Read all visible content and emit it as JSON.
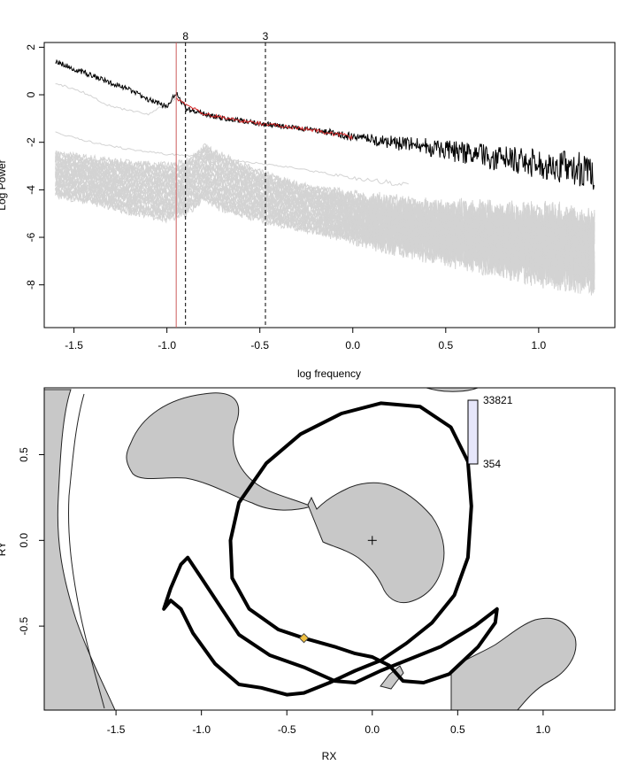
{
  "chart_data": [
    {
      "type": "line",
      "xlabel": "log frequency",
      "ylabel": "Log Power",
      "xlim": [
        -1.66,
        1.41
      ],
      "ylim": [
        -9.8,
        2.2
      ],
      "x_ticks": [
        -1.5,
        -1.0,
        -0.5,
        0.0,
        0.5,
        1.0
      ],
      "x_tick_labels": [
        "-1.5",
        "-1.0",
        "-0.5",
        "0.0",
        "0.5",
        "1.0"
      ],
      "y_ticks": [
        2,
        0,
        -2,
        -4,
        -6,
        -8
      ],
      "y_tick_labels": [
        "2",
        "0",
        "-2",
        "-4",
        "-6",
        "-8"
      ],
      "vertical_lines": [
        {
          "x": -0.95,
          "color": "#cd5c5c",
          "style": "solid",
          "label": ""
        },
        {
          "x": -0.9,
          "color": "#000000",
          "style": "dashed",
          "label": "8"
        },
        {
          "x": -0.47,
          "color": "#000000",
          "style": "dashed",
          "label": "3"
        }
      ],
      "series": [
        {
          "color": "#000000",
          "x": [
            -1.6,
            -1.5,
            -1.4,
            -1.3,
            -1.2,
            -1.1,
            -1.0,
            -0.95,
            -0.9,
            -0.8,
            -0.7,
            -0.6,
            -0.5,
            -0.4,
            -0.3,
            -0.2,
            -0.1,
            0.0,
            0.2,
            0.4,
            0.6,
            0.8,
            1.0,
            1.2,
            1.3
          ],
          "y": [
            1.4,
            1.1,
            0.8,
            0.5,
            0.2,
            -0.2,
            -0.5,
            0.1,
            -0.6,
            -0.8,
            -1.0,
            -1.1,
            -1.2,
            -1.3,
            -1.4,
            -1.5,
            -1.6,
            -1.8,
            -2.0,
            -2.2,
            -2.45,
            -2.7,
            -2.9,
            -3.1,
            -3.3
          ]
        },
        {
          "color": "#d62728",
          "x": [
            -0.95,
            -0.8,
            -0.6,
            -0.4,
            -0.2,
            0.0
          ],
          "y": [
            -0.2,
            -0.8,
            -1.1,
            -1.3,
            -1.5,
            -1.8
          ]
        },
        {
          "color": "#d3d3d3",
          "x": [
            -1.6,
            -1.4,
            -1.2,
            -1.0,
            -0.9,
            -0.8,
            -0.7,
            -0.5,
            -0.3,
            0.0,
            0.2,
            0.5,
            0.8,
            1.0,
            1.3
          ],
          "y": [
            -2.5,
            -2.7,
            -2.9,
            -3.0,
            -2.9,
            -2.2,
            -2.6,
            -3.3,
            -3.8,
            -4.3,
            -4.6,
            -5.0,
            -5.3,
            -5.5,
            -5.8
          ]
        },
        {
          "color": "#d3d3d3",
          "x": [
            -1.6,
            -1.4,
            -1.2,
            -1.0,
            -0.9,
            -0.8,
            -0.7,
            -0.5,
            -0.3,
            0.0,
            0.2,
            0.5,
            0.8,
            1.0,
            1.3
          ],
          "y": [
            -4.2,
            -4.5,
            -4.9,
            -5.2,
            -5.0,
            -4.4,
            -4.8,
            -5.2,
            -5.6,
            -6.0,
            -6.3,
            -6.6,
            -6.9,
            -7.1,
            -7.3
          ]
        },
        {
          "color": "#d3d3d3",
          "x": [
            -1.6,
            -1.4,
            -1.2,
            -1.0,
            -0.8,
            -0.6,
            -0.3,
            0.0,
            0.3
          ],
          "y": [
            -1.6,
            -2.0,
            -2.3,
            -2.5,
            -2.6,
            -2.8,
            -3.1,
            -3.5,
            -3.8
          ]
        },
        {
          "color": "#d3d3d3",
          "x": [
            -1.6,
            -1.45,
            -1.3,
            -1.1,
            -0.95
          ],
          "y": [
            0.5,
            0.1,
            -0.5,
            -0.8,
            -0.2
          ]
        }
      ]
    },
    {
      "type": "scatter",
      "xlabel": "RX",
      "ylabel": "RY",
      "xlim": [
        -1.92,
        1.42
      ],
      "ylim": [
        -0.99,
        0.89
      ],
      "x_ticks": [
        -1.5,
        -1.0,
        -0.5,
        0.0,
        0.5,
        1.0
      ],
      "x_tick_labels": [
        "-1.5",
        "-1.0",
        "-0.5",
        "0.0",
        "0.5",
        "1.0"
      ],
      "y_ticks": [
        0.5,
        0.0,
        -0.5
      ],
      "y_tick_labels": [
        "0.5",
        "0.0",
        "-0.5"
      ],
      "track_points": [
        [
          -0.4,
          -0.57
        ],
        [
          -0.55,
          -0.52
        ],
        [
          -0.72,
          -0.4
        ],
        [
          -0.82,
          -0.22
        ],
        [
          -0.83,
          0.0
        ],
        [
          -0.78,
          0.22
        ],
        [
          -0.62,
          0.45
        ],
        [
          -0.42,
          0.62
        ],
        [
          -0.18,
          0.74
        ],
        [
          0.05,
          0.8
        ],
        [
          0.28,
          0.78
        ],
        [
          0.46,
          0.66
        ],
        [
          0.56,
          0.46
        ],
        [
          0.58,
          0.2
        ],
        [
          0.56,
          -0.1
        ],
        [
          0.48,
          -0.32
        ],
        [
          0.35,
          -0.48
        ],
        [
          0.2,
          -0.6
        ],
        [
          0.05,
          -0.7
        ],
        [
          -0.1,
          -0.76
        ],
        [
          -0.25,
          -0.83
        ],
        [
          -0.4,
          -0.89
        ],
        [
          -0.5,
          -0.9
        ],
        [
          -0.65,
          -0.86
        ],
        [
          -0.78,
          -0.84
        ],
        [
          -0.92,
          -0.72
        ],
        [
          -1.05,
          -0.54
        ],
        [
          -1.12,
          -0.4
        ],
        [
          -1.18,
          -0.35
        ],
        [
          -1.22,
          -0.4
        ],
        [
          -1.18,
          -0.28
        ],
        [
          -1.12,
          -0.14
        ],
        [
          -1.08,
          -0.1
        ],
        [
          -1.0,
          -0.22
        ],
        [
          -0.88,
          -0.4
        ],
        [
          -0.78,
          -0.55
        ],
        [
          -0.6,
          -0.67
        ],
        [
          -0.4,
          -0.74
        ],
        [
          -0.22,
          -0.82
        ],
        [
          -0.1,
          -0.83
        ],
        [
          0.05,
          -0.76
        ],
        [
          0.2,
          -0.7
        ],
        [
          0.4,
          -0.62
        ],
        [
          0.6,
          -0.5
        ],
        [
          0.73,
          -0.4
        ],
        [
          0.72,
          -0.48
        ],
        [
          0.62,
          -0.62
        ],
        [
          0.45,
          -0.78
        ],
        [
          0.3,
          -0.83
        ],
        [
          0.18,
          -0.82
        ],
        [
          0.1,
          -0.73
        ],
        [
          0.0,
          -0.68
        ],
        [
          -0.1,
          -0.66
        ],
        [
          -0.22,
          -0.62
        ],
        [
          -0.4,
          -0.57
        ]
      ],
      "start_point": [
        -0.4,
        -0.57
      ],
      "center_marker": [
        0.0,
        0.0
      ],
      "legend_bar": {
        "max_label": "33821",
        "min_label": "354",
        "color": "#e6e6fa"
      }
    }
  ]
}
